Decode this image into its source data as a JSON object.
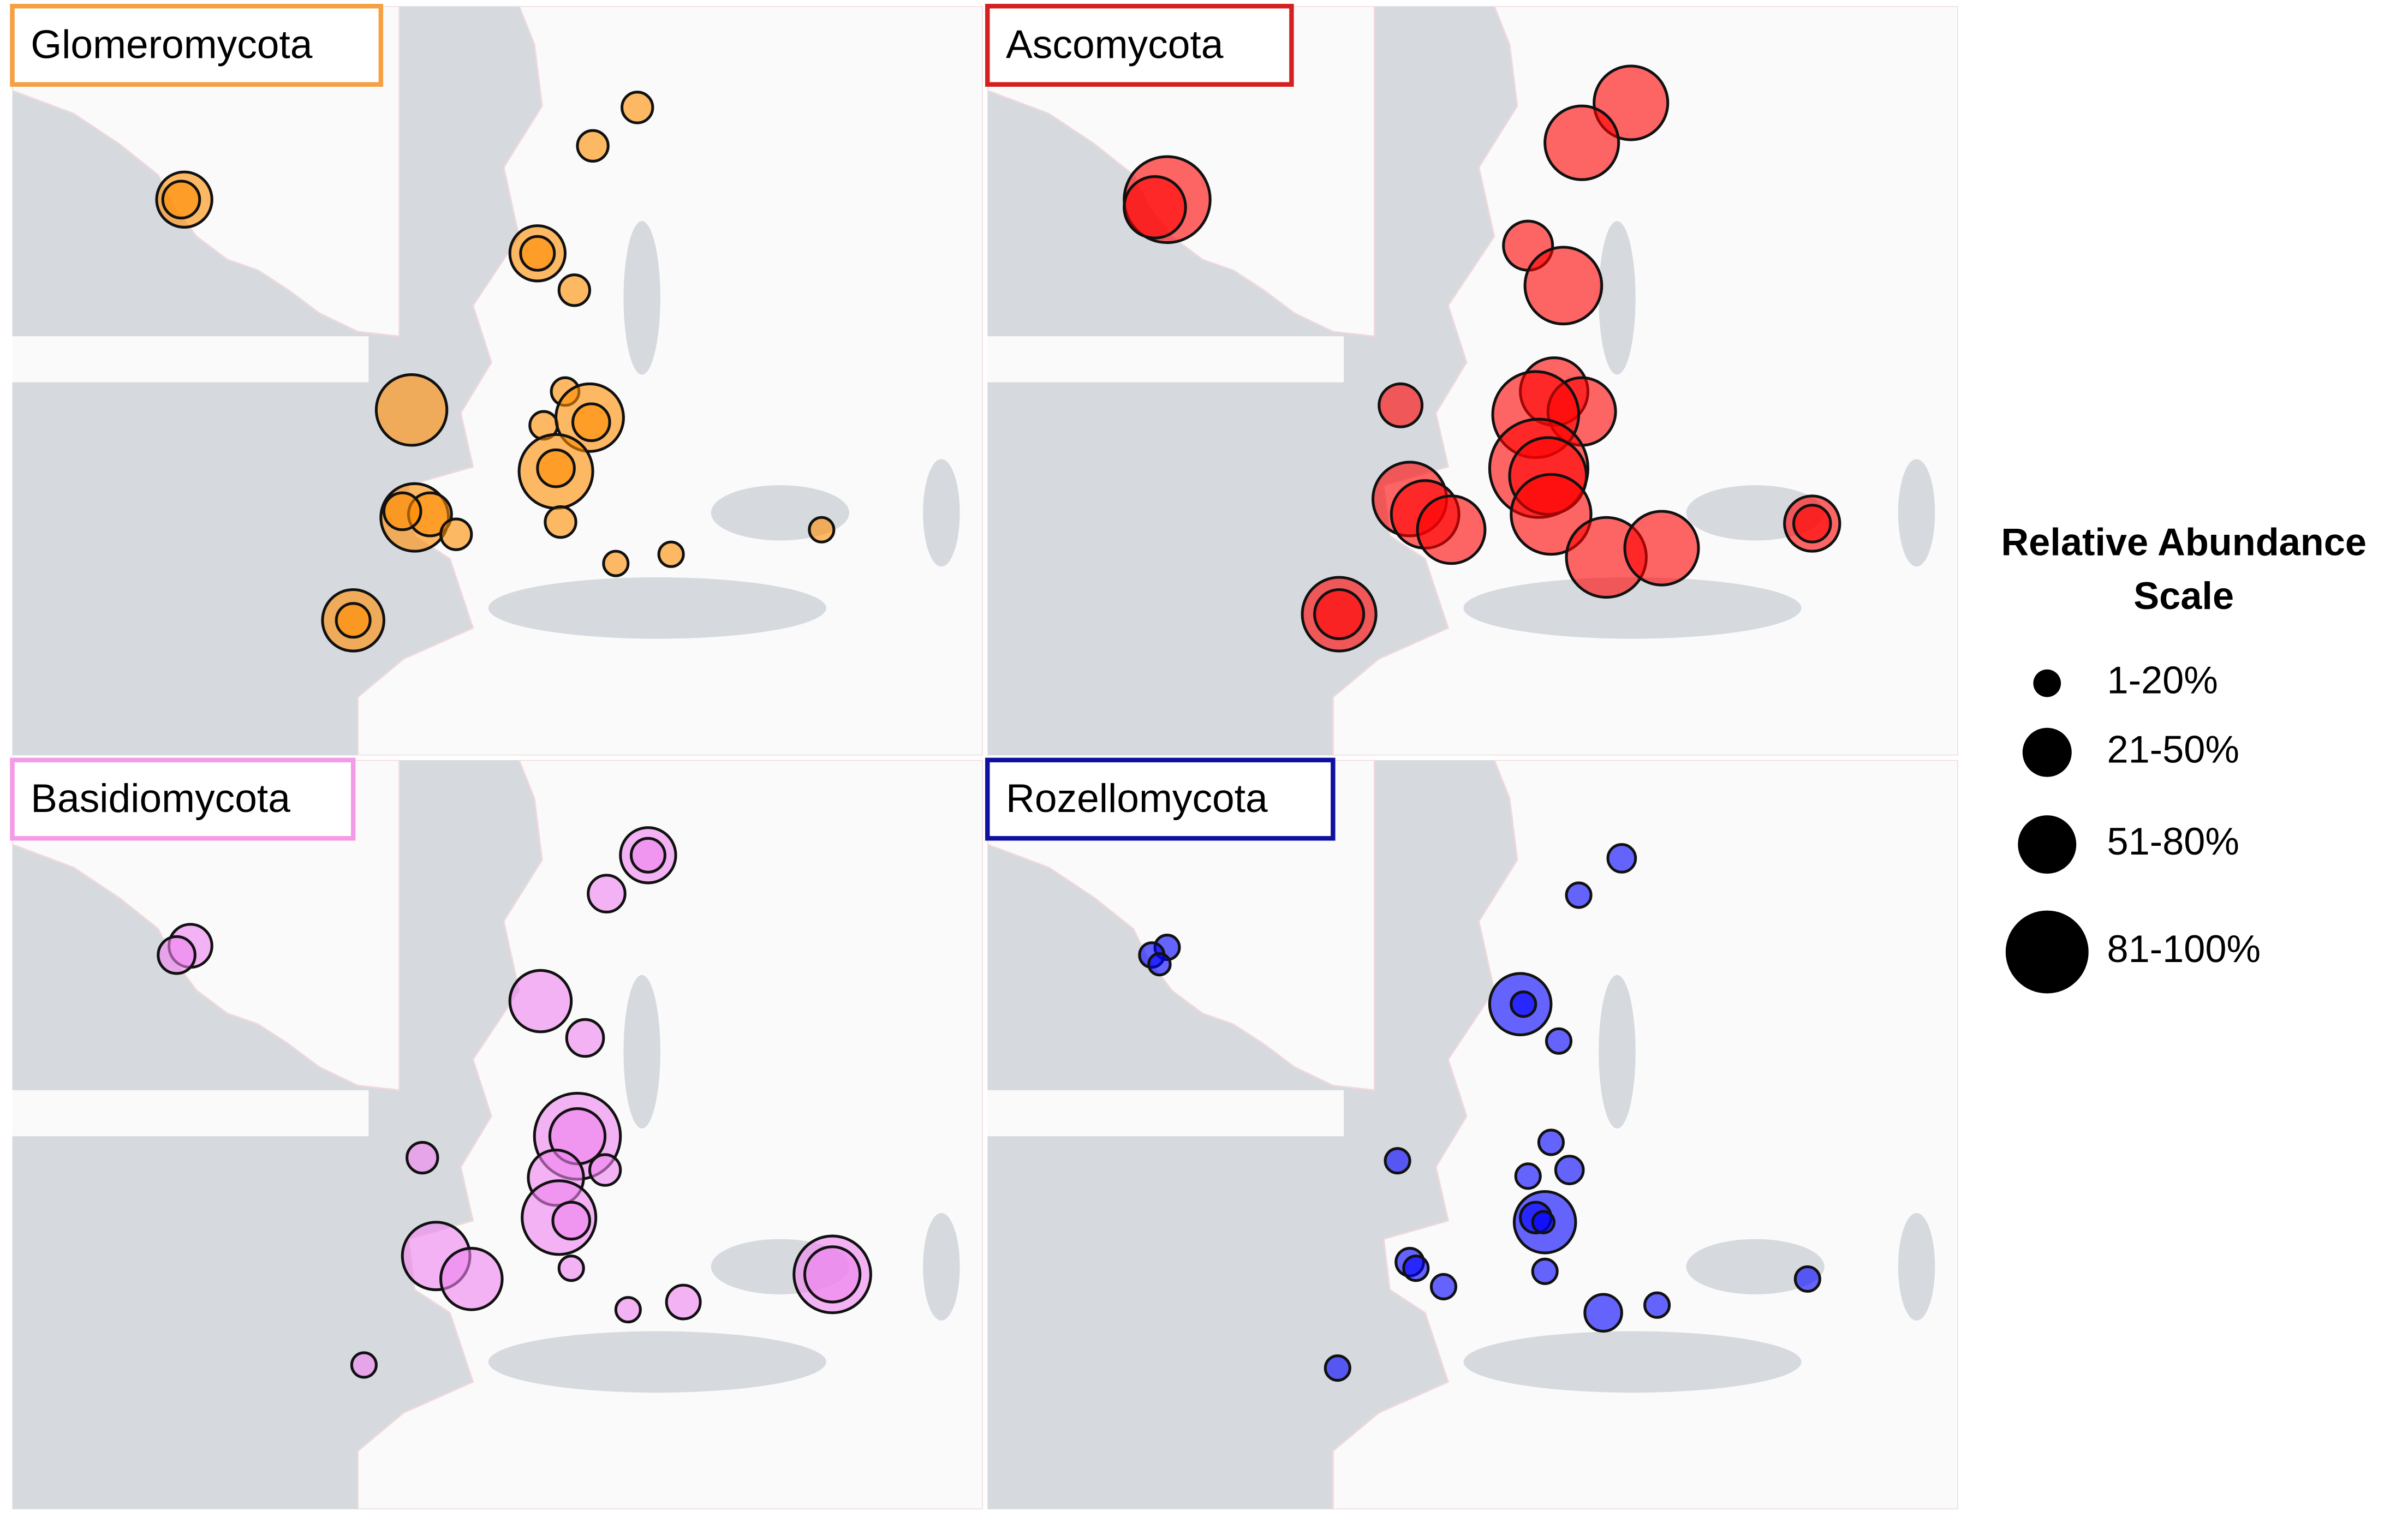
{
  "panels": [
    {
      "title": "Glomeromycota"
    },
    {
      "title": "Ascomycota"
    },
    {
      "title": "Basidiomycota"
    },
    {
      "title": "Rozellomycota"
    }
  ],
  "legend": {
    "title": [
      "Relative Abundance",
      "Scale"
    ],
    "items": [
      "1-20%",
      "21-50%",
      "51-80%",
      "81-100%"
    ]
  }
}
